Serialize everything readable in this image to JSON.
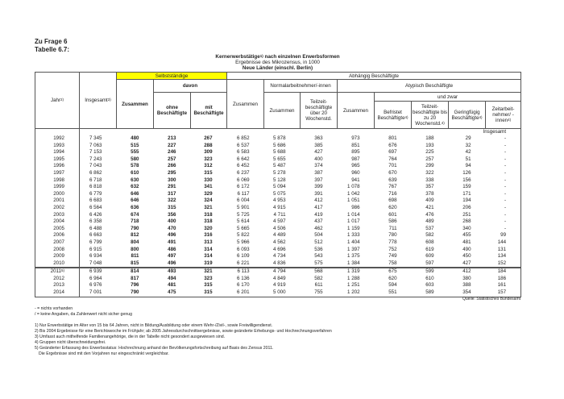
{
  "heading": {
    "line1": "Zu Frage 6",
    "line2": "Tabelle 6.7:"
  },
  "title": {
    "main": "Kernerwerbstätige",
    "main_sup": "1)",
    "main_rest": " nach einzelnen Erwerbsformen",
    "sub": "Ergebnisse des Mikrozensus, in 1000",
    "region": "Neue Länder (einschl. Berlin)"
  },
  "colors": {
    "highlight": "#ffff00"
  },
  "header": {
    "jahr": "Jahr",
    "jahr_sup": "2)",
    "insgesamt": "Insgesamt",
    "insgesamt_sup": "3)",
    "selbst": "Selbstständige",
    "abhaengig": "Abhängig Beschäftigte",
    "selbst_zusammen": "Zusammen",
    "davon": "davon",
    "ohne": "ohne Beschäftigte",
    "mit": "mit Beschäftigte",
    "abh_zusammen": "Zusammen",
    "normal": "Normalarbeitnehmer/-innen",
    "atypisch": "Atypisch Beschäftigte",
    "normal_zusammen": "Zusammen",
    "teilzeit_ueber": "Teilzeit-beschäftigte über 20 Wochenstd.",
    "atyp_zusammen": "Zusammen",
    "und_zwar": "und zwar",
    "befristet": "Befristet Beschäftigte",
    "befristet_sup": "4)",
    "teilzeit_bis": "Teilzeit-beschäftigte bis zu 20 Wochenstd.",
    "teilzeit_bis_sup": "4)",
    "geringfuegig": "Geringfügig Beschäftigte",
    "geringfuegig_sup": "4)",
    "zeitarbeit": "Zeitarbeit-nehmer/ -innen",
    "zeitarbeit_sup": "4)"
  },
  "section_label": "Insgesamt",
  "rows": [
    [
      "1992",
      "",
      "7 345",
      "480",
      "213",
      "267",
      "6 852",
      "5 878",
      "363",
      "973",
      "801",
      "188",
      "29",
      "-"
    ],
    [
      "1993",
      "",
      "7 063",
      "515",
      "227",
      "288",
      "6 537",
      "5 686",
      "385",
      "851",
      "676",
      "193",
      "32",
      "-"
    ],
    [
      "1994",
      "",
      "7 153",
      "555",
      "246",
      "309",
      "6 583",
      "5 688",
      "427",
      "895",
      "697",
      "225",
      "42",
      "-"
    ],
    [
      "1995",
      "",
      "7 243",
      "580",
      "257",
      "323",
      "6 642",
      "5 655",
      "400",
      "987",
      "764",
      "257",
      "51",
      "-"
    ],
    [
      "1996",
      "",
      "7 043",
      "578",
      "266",
      "312",
      "6 452",
      "5 487",
      "374",
      "965",
      "701",
      "299",
      "94",
      "-"
    ],
    [
      "1997",
      "",
      "6 862",
      "610",
      "295",
      "315",
      "6 237",
      "5 278",
      "387",
      "960",
      "670",
      "322",
      "126",
      "-"
    ],
    [
      "1998",
      "",
      "6 718",
      "630",
      "300",
      "330",
      "6 069",
      "5 128",
      "397",
      "941",
      "639",
      "338",
      "156",
      "-"
    ],
    [
      "1999",
      "",
      "6 818",
      "632",
      "291",
      "341",
      "6 172",
      "5 094",
      "399",
      "1 078",
      "767",
      "357",
      "159",
      "-"
    ],
    [
      "2000",
      "",
      "6 779",
      "646",
      "317",
      "329",
      "6 117",
      "5 075",
      "391",
      "1 042",
      "716",
      "378",
      "171",
      "-"
    ],
    [
      "2001",
      "",
      "6 683",
      "646",
      "322",
      "324",
      "6 004",
      "4 953",
      "412",
      "1 051",
      "698",
      "409",
      "194",
      "-"
    ],
    [
      "2002",
      "",
      "6 564",
      "636",
      "315",
      "321",
      "5 901",
      "4 915",
      "417",
      "986",
      "620",
      "421",
      "206",
      "-"
    ],
    [
      "2003",
      "",
      "6 426",
      "674",
      "356",
      "318",
      "5 725",
      "4 711",
      "419",
      "1 014",
      "601",
      "476",
      "251",
      "-"
    ],
    [
      "2004",
      "",
      "6 358",
      "718",
      "400",
      "318",
      "5 614",
      "4 597",
      "437",
      "1 017",
      "586",
      "489",
      "268",
      "-"
    ],
    [
      "2005",
      "",
      "6 488",
      "790",
      "470",
      "320",
      "5 665",
      "4 506",
      "462",
      "1 159",
      "711",
      "537",
      "340",
      "-"
    ],
    [
      "2006",
      "",
      "6 663",
      "812",
      "496",
      "316",
      "5 822",
      "4 489",
      "504",
      "1 333",
      "780",
      "582",
      "455",
      "99"
    ],
    [
      "2007",
      "",
      "6 799",
      "804",
      "491",
      "313",
      "5 966",
      "4 562",
      "512",
      "1 404",
      "778",
      "608",
      "481",
      "144"
    ],
    [
      "2008",
      "",
      "6 915",
      "800",
      "486",
      "314",
      "6 093",
      "4 696",
      "536",
      "1 397",
      "752",
      "619",
      "490",
      "131"
    ],
    [
      "2009",
      "",
      "6 934",
      "811",
      "497",
      "314",
      "6 109",
      "4 734",
      "543",
      "1 375",
      "749",
      "609",
      "450",
      "134"
    ],
    [
      "2010",
      "",
      "7 048",
      "815",
      "496",
      "319",
      "6 221",
      "4 836",
      "575",
      "1 384",
      "758",
      "597",
      "427",
      "152"
    ],
    [
      "2011",
      "5)",
      "6 939",
      "814",
      "493",
      "321",
      "6 113",
      "4 794",
      "568",
      "1 319",
      "675",
      "599",
      "412",
      "184"
    ],
    [
      "2012",
      "",
      "6 964",
      "817",
      "494",
      "323",
      "6 136",
      "4 849",
      "582",
      "1 288",
      "620",
      "610",
      "380",
      "186"
    ],
    [
      "2013",
      "",
      "6 976",
      "796",
      "481",
      "315",
      "6 170",
      "4 919",
      "611",
      "1 251",
      "594",
      "603",
      "388",
      "161"
    ],
    [
      "2014",
      "",
      "7 001",
      "790",
      "475",
      "315",
      "6 201",
      "5 000",
      "755",
      "1 202",
      "551",
      "589",
      "354",
      "157"
    ]
  ],
  "source": "Quelle: Statistisches Bundesamt",
  "legend": [
    "- = nichts vorhanden",
    "/ = keine Angaben, da Zahlenwert nicht sicher genug"
  ],
  "footnotes": [
    "1) Nur Erwerbstätige im Alter von 15 bis 64 Jahren, nicht in Bildung/Ausbildung oder einem Wehr-/Zivil-, sowie Freiwilligendienst.",
    "2) Bis 2004 Ergebnisse für eine Berichtswoche im Frühjahr; ab 2005 Jahresdurchschnittsergebnisse, sowie geänderte Erhebungs- und Hochrechnungsverfahren",
    "3) Umfasst auch mithelfende Familienangehörige, die in der Tabelle nicht gesondert ausgewiesen sind.",
    "4) Gruppen nicht überschneidungsfrei.",
    "5) Geänderter Erfassung des Erwerbsstatus: Hochrechnung anhand der Bevölkerungsfortschreibung auf Basis des Zensus 2011.",
    "Die Ergebnisse sind mit den Vorjahren nur eingeschränkt vergleichbar."
  ]
}
